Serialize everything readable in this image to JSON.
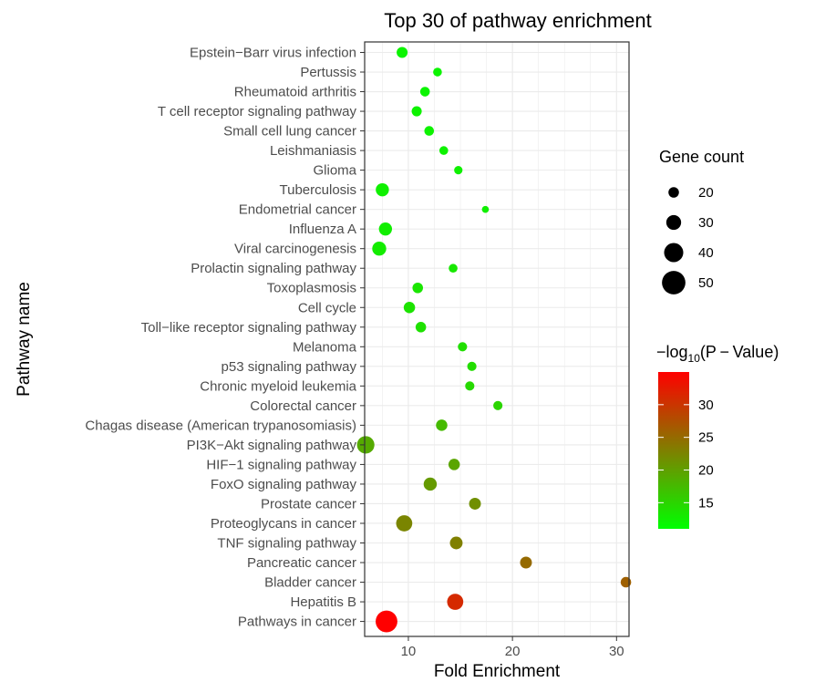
{
  "chart_data": {
    "type": "scatter",
    "title": "Top 30 of pathway enrichment",
    "xlabel": "Fold Enrichment",
    "ylabel": "Pathway name",
    "xlim": [
      5.8,
      31.2
    ],
    "xticks": [
      10,
      20,
      30
    ],
    "grid": true,
    "size_legend": {
      "title": "Gene count",
      "entries": [
        20,
        30,
        40,
        50
      ]
    },
    "color_legend": {
      "title_prefix": "−log",
      "title_sub": "10",
      "title_suffix": "(P − Value)",
      "min": 11,
      "max": 35,
      "ticks": [
        15,
        20,
        25,
        30
      ],
      "low_color": "#00ff00",
      "high_color": "#ff0000"
    },
    "points": [
      {
        "name": "Epstein−Barr virus infection",
        "fold": 9.4,
        "count": 21,
        "logp": 12.0
      },
      {
        "name": "Pertussis",
        "fold": 12.8,
        "count": 16,
        "logp": 12.0
      },
      {
        "name": "Rheumatoid arthritis",
        "fold": 11.6,
        "count": 18,
        "logp": 12.0
      },
      {
        "name": "T cell receptor signaling pathway",
        "fold": 10.8,
        "count": 19,
        "logp": 12.2
      },
      {
        "name": "Small cell lung cancer",
        "fold": 12.0,
        "count": 18,
        "logp": 12.2
      },
      {
        "name": "Leishmaniasis",
        "fold": 13.4,
        "count": 16,
        "logp": 12.2
      },
      {
        "name": "Glioma",
        "fold": 14.8,
        "count": 15,
        "logp": 12.4
      },
      {
        "name": "Tuberculosis",
        "fold": 7.5,
        "count": 26,
        "logp": 12.4
      },
      {
        "name": "Endometrial cancer",
        "fold": 17.4,
        "count": 12,
        "logp": 12.5
      },
      {
        "name": "Influenza A",
        "fold": 7.8,
        "count": 26,
        "logp": 12.6
      },
      {
        "name": "Viral carcinogenesis",
        "fold": 7.2,
        "count": 28,
        "logp": 12.8
      },
      {
        "name": "Prolactin signaling pathway",
        "fold": 14.3,
        "count": 16,
        "logp": 13.2
      },
      {
        "name": "Toxoplasmosis",
        "fold": 10.9,
        "count": 20,
        "logp": 13.4
      },
      {
        "name": "Cell cycle",
        "fold": 10.1,
        "count": 22,
        "logp": 13.6
      },
      {
        "name": "Toll−like receptor signaling pathway",
        "fold": 11.2,
        "count": 20,
        "logp": 13.8
      },
      {
        "name": "Melanoma",
        "fold": 15.2,
        "count": 17,
        "logp": 14.0
      },
      {
        "name": "p53 signaling pathway",
        "fold": 16.1,
        "count": 17,
        "logp": 14.2
      },
      {
        "name": "Chronic myeloid leukemia",
        "fold": 15.9,
        "count": 17,
        "logp": 14.6
      },
      {
        "name": "Colorectal cancer",
        "fold": 18.6,
        "count": 17,
        "logp": 15.0
      },
      {
        "name": "Chagas disease (American trypanosomiasis)",
        "fold": 13.2,
        "count": 22,
        "logp": 17.5
      },
      {
        "name": "PI3K−Akt signaling pathway",
        "fold": 5.9,
        "count": 36,
        "logp": 19.0
      },
      {
        "name": "HIF−1 signaling pathway",
        "fold": 14.4,
        "count": 22,
        "logp": 19.5
      },
      {
        "name": "FoxO signaling pathway",
        "fold": 12.1,
        "count": 26,
        "logp": 20.5
      },
      {
        "name": "Prostate cancer",
        "fold": 16.4,
        "count": 23,
        "logp": 21.5
      },
      {
        "name": "Proteoglycans in cancer",
        "fold": 9.6,
        "count": 33,
        "logp": 22.5
      },
      {
        "name": "TNF signaling pathway",
        "fold": 14.6,
        "count": 25,
        "logp": 23.0
      },
      {
        "name": "Pancreatic cancer",
        "fold": 21.3,
        "count": 23,
        "logp": 25.0
      },
      {
        "name": "Bladder cancer",
        "fold": 30.9,
        "count": 20,
        "logp": 26.0
      },
      {
        "name": "Hepatitis B",
        "fold": 14.5,
        "count": 33,
        "logp": 31.0
      },
      {
        "name": "Pathways in cancer",
        "fold": 7.9,
        "count": 46,
        "logp": 35.0
      }
    ]
  }
}
